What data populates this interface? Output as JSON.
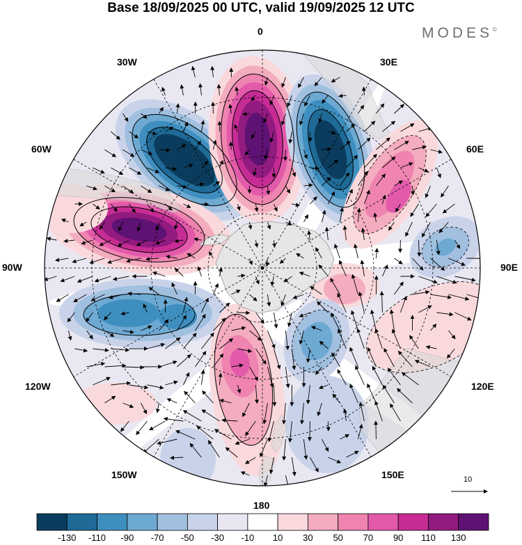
{
  "title": "Base 18/09/2025 00 UTC, valid 19/09/2025 12 UTC",
  "brand": {
    "name": "MODES",
    "mark": "©"
  },
  "map": {
    "projection": "south-polar-stereographic",
    "lon_labels": [
      "0",
      "30E",
      "60E",
      "90E",
      "120E",
      "150E",
      "180",
      "150W",
      "120W",
      "90W",
      "60W",
      "30W"
    ],
    "reference_vector_label": "10"
  },
  "colorbar": {
    "colors": [
      "#0b3c5d",
      "#1f6a96",
      "#3e8fbf",
      "#6ea9d2",
      "#a1c0e0",
      "#c8d3ea",
      "#e8e6f1",
      "#ffffff",
      "#f9d9dc",
      "#f4adbf",
      "#ef84b0",
      "#e35aab",
      "#c62c94",
      "#921b7f",
      "#5e1273"
    ],
    "tick_labels": [
      "-130",
      "-110",
      "-90",
      "-70",
      "-50",
      "-30",
      "-10",
      "10",
      "30",
      "50",
      "70",
      "90",
      "110",
      "130"
    ]
  },
  "anomalies": [
    {
      "id": "atlantic-low",
      "sign": "negative",
      "peak": -130
    },
    {
      "id": "prime-meridian-high",
      "sign": "positive",
      "peak": 130
    },
    {
      "id": "east-atlantic-low",
      "sign": "negative",
      "peak": -130
    },
    {
      "id": "weddell-high",
      "sign": "positive",
      "peak": 130
    },
    {
      "id": "indian-high",
      "sign": "positive",
      "peak": 70
    },
    {
      "id": "southern-indian-low",
      "sign": "negative",
      "peak": -50
    },
    {
      "id": "amundsen-low",
      "sign": "negative",
      "peak": -90
    },
    {
      "id": "ross-high",
      "sign": "positive",
      "peak": 70
    },
    {
      "id": "ross-low",
      "sign": "negative",
      "peak": -70
    },
    {
      "id": "pacific-south-high",
      "sign": "positive",
      "peak": 50
    }
  ]
}
